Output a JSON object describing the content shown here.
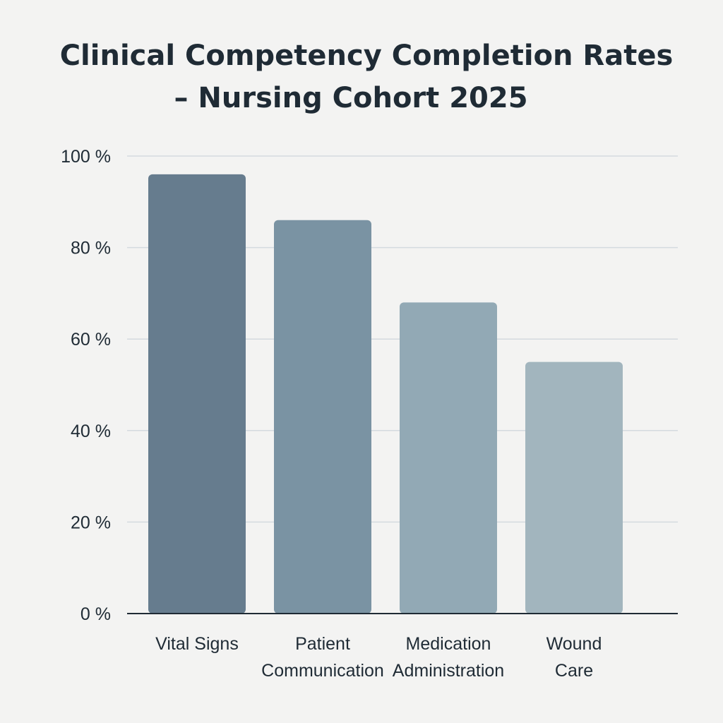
{
  "chart_data": {
    "type": "bar",
    "title_lines": [
      "Clinical Competency Completion Rates",
      "– Nursing Cohort 2025"
    ],
    "categories": [
      [
        "Vital Signs"
      ],
      [
        "Patient",
        "Communication"
      ],
      [
        "Medication",
        "Administration"
      ],
      [
        "Wound",
        "Care"
      ]
    ],
    "values": [
      96,
      86,
      68,
      55
    ],
    "ylim": [
      0,
      100
    ],
    "yticks": [
      0,
      20,
      40,
      60,
      80,
      100
    ],
    "ytick_labels": [
      "0 %",
      "20 %",
      "40 %",
      "60 %",
      "80 %",
      "100 %"
    ],
    "grid": true,
    "legend": "none",
    "bar_colors": [
      "#667c8e",
      "#7a93a3",
      "#92a9b5",
      "#a2b5be"
    ]
  }
}
